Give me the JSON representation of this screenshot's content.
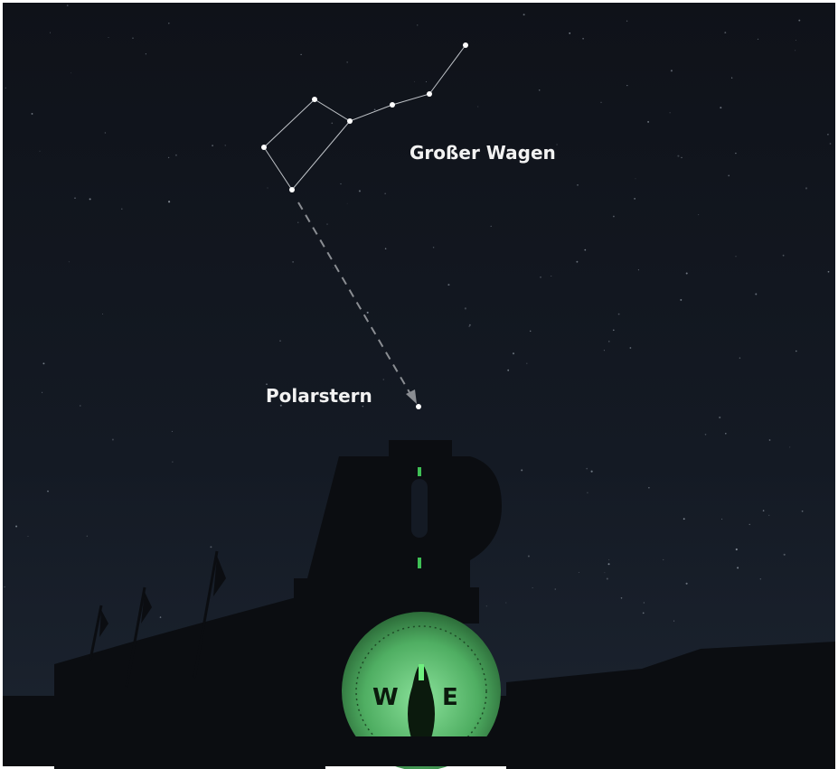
{
  "labels": {
    "constellation": "Großer Wagen",
    "pole_star": "Polarstern"
  },
  "compass": {
    "west": "W",
    "east": "E"
  }
}
